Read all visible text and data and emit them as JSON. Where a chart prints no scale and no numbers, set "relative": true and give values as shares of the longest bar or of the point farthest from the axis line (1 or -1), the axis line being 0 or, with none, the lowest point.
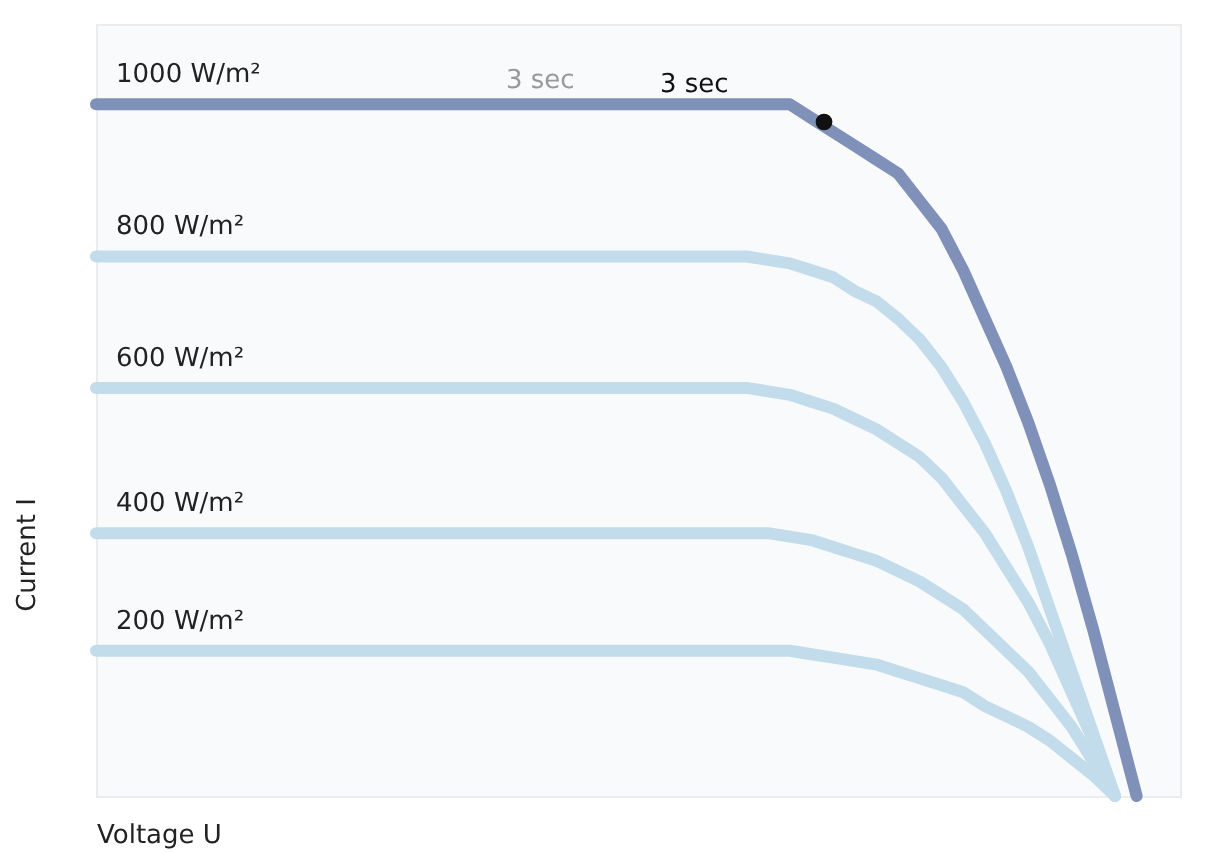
{
  "chart_data": {
    "type": "line",
    "relative": true,
    "xlabel": "Voltage U",
    "ylabel": "Current I",
    "grid": false,
    "categories": [
      null,
      null,
      null,
      null,
      null,
      null,
      null,
      null,
      null,
      null,
      null,
      null,
      null,
      null,
      null,
      null,
      null,
      null,
      null,
      null,
      null,
      null,
      null,
      null,
      null,
      null,
      null,
      null,
      null,
      null,
      null,
      null,
      null,
      null,
      null,
      null,
      null,
      null,
      null,
      null,
      null,
      null,
      null,
      null,
      null,
      null,
      null,
      null,
      null,
      null,
      null
    ],
    "annotations": [
      "3 sec",
      "3 sec"
    ],
    "series": [
      {
        "name": "1000 W/m²",
        "color": "#7f91b8",
        "values": [
          1,
          1,
          1,
          1,
          1,
          1,
          1,
          1,
          1,
          1,
          1,
          1,
          1,
          1,
          1,
          1,
          1,
          1,
          1,
          1,
          1,
          1,
          1,
          1,
          1,
          1,
          1,
          1,
          1,
          1,
          1,
          1,
          1,
          0.98,
          0.96,
          0.94,
          0.92,
          0.9,
          0.86,
          0.82,
          0.76,
          0.69,
          0.62,
          0.54,
          0.45,
          0.35,
          0.24,
          0.12,
          0,
          null,
          null
        ]
      },
      {
        "name": "800 W/m²",
        "color": "#c2dcec",
        "values": [
          0.78,
          0.78,
          0.78,
          0.78,
          0.78,
          0.78,
          0.78,
          0.78,
          0.78,
          0.78,
          0.78,
          0.78,
          0.78,
          0.78,
          0.78,
          0.78,
          0.78,
          0.78,
          0.78,
          0.78,
          0.78,
          0.78,
          0.78,
          0.78,
          0.78,
          0.78,
          0.78,
          0.78,
          0.78,
          0.78,
          0.78,
          0.775,
          0.77,
          0.76,
          0.75,
          0.73,
          0.715,
          0.69,
          0.66,
          0.62,
          0.57,
          0.51,
          0.44,
          0.36,
          0.27,
          0.18,
          0.09,
          0,
          null,
          null,
          null
        ]
      },
      {
        "name": "600 W/m²",
        "color": "#c2dcec",
        "values": [
          0.59,
          0.59,
          0.59,
          0.59,
          0.59,
          0.59,
          0.59,
          0.59,
          0.59,
          0.59,
          0.59,
          0.59,
          0.59,
          0.59,
          0.59,
          0.59,
          0.59,
          0.59,
          0.59,
          0.59,
          0.59,
          0.59,
          0.59,
          0.59,
          0.59,
          0.59,
          0.59,
          0.59,
          0.59,
          0.59,
          0.59,
          0.585,
          0.58,
          0.57,
          0.56,
          0.545,
          0.53,
          0.51,
          0.49,
          0.46,
          0.42,
          0.38,
          0.33,
          0.28,
          0.22,
          0.15,
          0.08,
          0,
          null,
          null,
          null
        ]
      },
      {
        "name": "400 W/m²",
        "color": "#c2dcec",
        "values": [
          0.38,
          0.38,
          0.38,
          0.38,
          0.38,
          0.38,
          0.38,
          0.38,
          0.38,
          0.38,
          0.38,
          0.38,
          0.38,
          0.38,
          0.38,
          0.38,
          0.38,
          0.38,
          0.38,
          0.38,
          0.38,
          0.38,
          0.38,
          0.38,
          0.38,
          0.38,
          0.38,
          0.38,
          0.38,
          0.38,
          0.38,
          0.38,
          0.375,
          0.37,
          0.36,
          0.35,
          0.34,
          0.325,
          0.31,
          0.29,
          0.27,
          0.24,
          0.21,
          0.18,
          0.14,
          0.1,
          0.05,
          0,
          null,
          null,
          null
        ]
      },
      {
        "name": "200 W/m²",
        "color": "#c2dcec",
        "values": [
          0.21,
          0.21,
          0.21,
          0.21,
          0.21,
          0.21,
          0.21,
          0.21,
          0.21,
          0.21,
          0.21,
          0.21,
          0.21,
          0.21,
          0.21,
          0.21,
          0.21,
          0.21,
          0.21,
          0.21,
          0.21,
          0.21,
          0.21,
          0.21,
          0.21,
          0.21,
          0.21,
          0.21,
          0.21,
          0.21,
          0.21,
          0.21,
          0.21,
          0.205,
          0.2,
          0.195,
          0.19,
          0.18,
          0.17,
          0.16,
          0.15,
          0.13,
          0.115,
          0.1,
          0.08,
          0.055,
          0.03,
          0,
          null,
          null,
          null
        ]
      }
    ]
  }
}
